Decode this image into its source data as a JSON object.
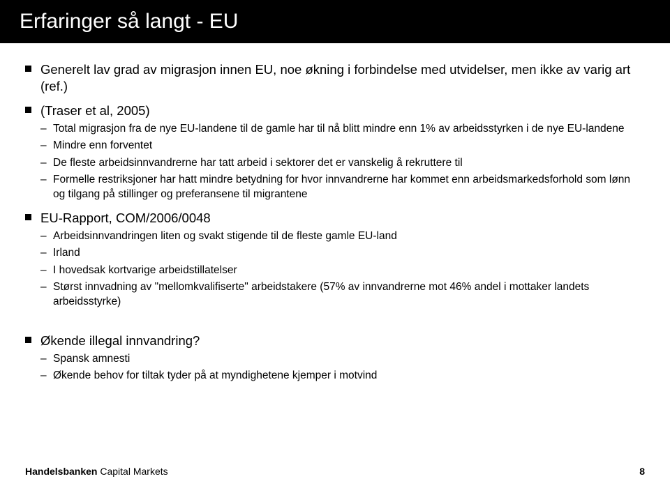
{
  "colors": {
    "title_bg": "#000000",
    "title_fg": "#ffffff",
    "body_bg": "#ffffff",
    "text": "#000000",
    "bullet": "#000000"
  },
  "typography": {
    "title_fontsize": 30,
    "l1_fontsize": 18.5,
    "l2_fontsize": 15.5,
    "footer_fontsize": 14,
    "font_family": "Arial"
  },
  "title": "Erfaringer så langt - EU",
  "b1": {
    "text": "Generelt lav grad av migrasjon innen EU, noe økning i forbindelse med utvidelser, men ikke av varig art (ref.)"
  },
  "b2": {
    "text": "(Traser et al, 2005)",
    "items": {
      "i0": "Total migrasjon fra de nye EU-landene til de gamle har til nå blitt mindre enn 1% av arbeidsstyrken i de nye EU-landene",
      "i1": "Mindre enn forventet",
      "i2": "De fleste arbeidsinnvandrerne har tatt arbeid i sektorer det er vanskelig å rekruttere til",
      "i3": "Formelle restriksjoner har hatt mindre betydning for hvor innvandrerne har kommet enn arbeidsmarkedsforhold som lønn og tilgang på stillinger og preferansene til migrantene"
    }
  },
  "b3": {
    "text": "EU-Rapport, COM/2006/0048",
    "items": {
      "i0": "Arbeidsinnvandringen liten og svakt stigende til de fleste gamle EU-land",
      "i1": "Irland",
      "i2": "I hovedsak kortvarige arbeidstillatelser",
      "i3": "Størst innvadning av \"mellomkvalifiserte\" arbeidstakere (57% av innvandrerne mot 46% andel i mottaker landets arbeidsstyrke)"
    }
  },
  "b4": {
    "text": "Økende illegal innvandring?",
    "items": {
      "i0": "Spansk amnesti",
      "i1": "Økende behov for tiltak tyder på at myndighetene kjemper i motvind"
    }
  },
  "footer": {
    "brand_bold": "Handelsbanken",
    "brand_rest": " Capital Markets",
    "page": "8"
  }
}
